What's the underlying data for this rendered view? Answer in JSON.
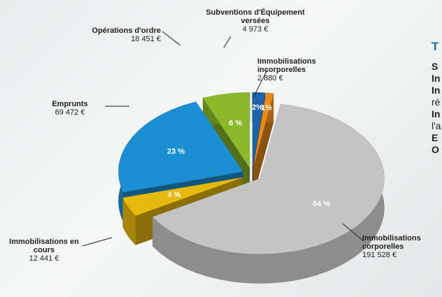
{
  "chart_data": {
    "type": "pie",
    "categories": [
      "Subventions d'Équipement versées",
      "Immobilisations incorporelles",
      "Immobilisations corporelles",
      "Immobilisations en cours",
      "Emprunts",
      "Opérations d'ordre"
    ],
    "values": [
      4973,
      2880,
      191528,
      12441,
      69472,
      18451
    ],
    "value_labels": [
      "4 973 €",
      "2 880 €",
      "191 528 €",
      "12 441 €",
      "69 472 €",
      "18 451 €"
    ],
    "percent_labels": [
      "2%",
      "1%",
      "64 %",
      "4 %",
      "23 %",
      "6 %"
    ],
    "colors": [
      "#1f62a8",
      "#e8891a",
      "#c4c4c4",
      "#e6b90e",
      "#1a90d2",
      "#8cb92b"
    ]
  },
  "sidebar": {
    "title": "T",
    "lines": [
      "S",
      "In",
      "In",
      "ré",
      "In",
      "l'a",
      "E",
      "O"
    ]
  }
}
